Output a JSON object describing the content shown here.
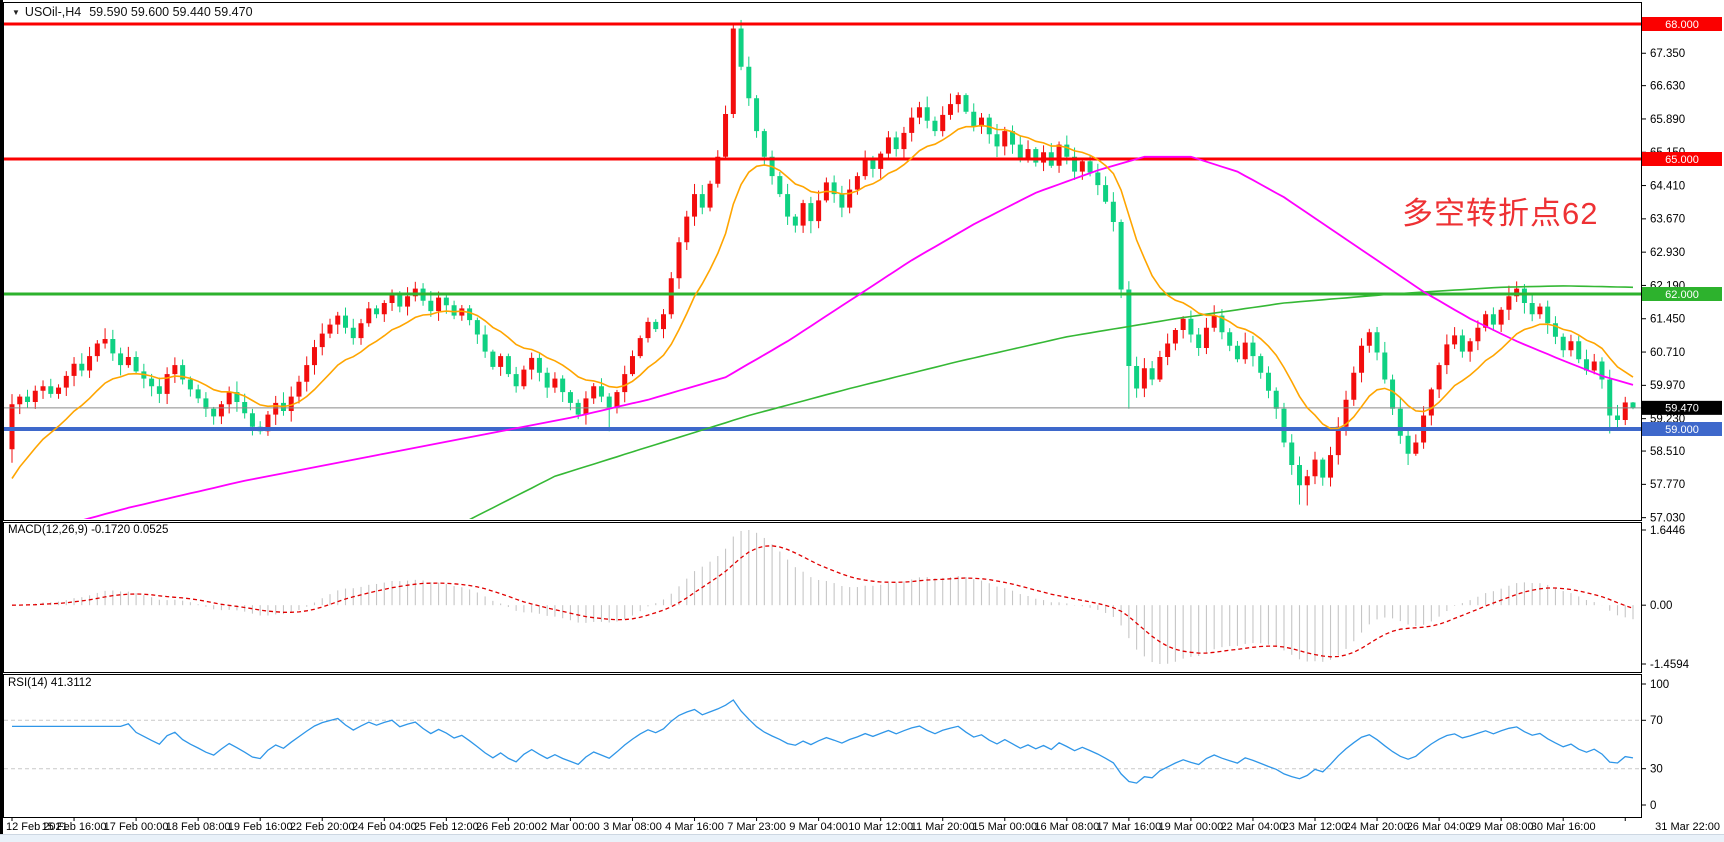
{
  "header": {
    "symbol_period": "USOil-,H4",
    "quote": "59.590 59.600 59.440 59.470",
    "open": "59.590",
    "high": "59.600",
    "low": "59.440",
    "close": "59.470"
  },
  "annotation": {
    "text": "多空转折点62",
    "color": "#ee3134"
  },
  "colors": {
    "candle_up": "#f20d0d",
    "candle_down": "#0fd182",
    "ma_fast_orange": "#ffa500",
    "ma_mid_magenta": "#ff00ff",
    "ma_slow_green": "#35b835",
    "hline_red": "#fb0000",
    "hline_green": "#2db22d",
    "hline_blue": "#3e68cb",
    "current_price_line": "#8a8a8a",
    "current_price_badge_bg": "#000000",
    "macd_histogram": "#c6c6c6",
    "macd_signal": "#e00000",
    "rsi_line": "#2f96e8",
    "level_dash": "#c9c9c9",
    "axis_text": "#000000"
  },
  "main_pane": {
    "y_ticks": [
      "67.350",
      "66.630",
      "65.890",
      "65.150",
      "64.410",
      "63.670",
      "62.930",
      "62.190",
      "61.450",
      "60.710",
      "59.970",
      "59.230",
      "58.510",
      "57.770",
      "57.030"
    ],
    "hlines": [
      {
        "price": 68.0,
        "label": "68.000",
        "color_key": "hline_red",
        "thickness": 3
      },
      {
        "price": 65.0,
        "label": "65.000",
        "color_key": "hline_red",
        "thickness": 3
      },
      {
        "price": 62.0,
        "label": "62.000",
        "color_key": "hline_green",
        "thickness": 3
      },
      {
        "price": 59.0,
        "label": "59.000",
        "color_key": "hline_blue",
        "thickness": 4
      }
    ],
    "current_price": {
      "value": 59.47,
      "label": "59.470"
    }
  },
  "chart_data": {
    "type": "candlestick",
    "title": "USOil-,H4  59.590 59.600 59.440 59.470",
    "symbol": "USOil-",
    "timeframe": "H4",
    "ylim": [
      56.98,
      68.47
    ],
    "bars_per_x_label": 8,
    "x_labels": [
      "12 Feb 2021",
      "15 Feb 16:00",
      "17 Feb 00:00",
      "18 Feb 08:00",
      "19 Feb 16:00",
      "22 Feb 20:00",
      "24 Feb 04:00",
      "25 Feb 12:00",
      "26 Feb 20:00",
      "2 Mar 00:00",
      "3 Mar 08:00",
      "4 Mar 16:00",
      "7 Mar 23:00",
      "9 Mar 04:00",
      "10 Mar 12:00",
      "11 Mar 20:00",
      "15 Mar 00:00",
      "16 Mar 08:00",
      "17 Mar 16:00",
      "19 Mar 00:00",
      "22 Mar 04:00",
      "23 Mar 12:00",
      "24 Mar 20:00",
      "26 Mar 04:00",
      "29 Mar 08:00",
      "30 Mar 16:00",
      "31 Mar 22:00"
    ],
    "first_open": 58.55,
    "closes": [
      59.55,
      59.72,
      59.6,
      59.85,
      59.95,
      59.78,
      59.92,
      60.18,
      60.45,
      60.3,
      60.62,
      60.9,
      61.0,
      60.68,
      60.42,
      60.6,
      60.28,
      60.12,
      59.95,
      59.78,
      60.22,
      60.42,
      60.1,
      59.88,
      59.68,
      59.45,
      59.28,
      59.55,
      59.82,
      59.6,
      59.35,
      59.05,
      58.95,
      59.32,
      59.58,
      59.4,
      59.72,
      60.05,
      60.42,
      60.82,
      61.12,
      61.32,
      61.52,
      61.25,
      61.02,
      61.35,
      61.68,
      61.55,
      61.8,
      62.0,
      61.72,
      61.95,
      62.12,
      61.85,
      61.62,
      61.92,
      61.75,
      61.52,
      61.68,
      61.42,
      61.1,
      60.72,
      60.38,
      60.62,
      60.22,
      59.95,
      60.32,
      60.58,
      60.25,
      59.92,
      60.12,
      59.82,
      59.58,
      59.32,
      59.68,
      59.95,
      59.72,
      59.48,
      59.82,
      60.22,
      60.62,
      61.02,
      61.38,
      61.22,
      61.55,
      62.35,
      63.15,
      63.72,
      64.22,
      63.92,
      64.45,
      65.05,
      66.0,
      67.9,
      67.05,
      66.35,
      65.62,
      65.05,
      64.62,
      64.22,
      63.72,
      63.52,
      64.02,
      63.62,
      64.08,
      64.48,
      64.22,
      63.92,
      64.32,
      64.62,
      65.02,
      64.78,
      65.12,
      65.48,
      65.22,
      65.58,
      65.92,
      66.15,
      65.85,
      65.62,
      65.98,
      66.22,
      66.42,
      66.05,
      65.72,
      65.92,
      65.55,
      65.28,
      65.62,
      65.32,
      64.98,
      65.22,
      64.92,
      65.15,
      64.85,
      65.32,
      65.05,
      64.72,
      64.95,
      64.7,
      64.42,
      64.05,
      63.6,
      62.1,
      60.4,
      59.9,
      60.35,
      60.1,
      60.6,
      60.9,
      61.2,
      61.45,
      61.1,
      60.8,
      61.25,
      61.52,
      61.15,
      60.85,
      60.55,
      60.92,
      60.62,
      60.25,
      59.85,
      59.45,
      58.7,
      58.2,
      57.75,
      57.95,
      58.32,
      57.92,
      58.42,
      59.05,
      59.65,
      60.25,
      60.85,
      61.15,
      60.7,
      60.1,
      59.45,
      58.85,
      58.45,
      58.7,
      59.3,
      59.88,
      60.42,
      60.88,
      61.08,
      60.72,
      60.95,
      61.25,
      61.55,
      61.32,
      61.65,
      61.95,
      62.12,
      61.8,
      61.55,
      61.72,
      61.35,
      61.05,
      60.75,
      60.95,
      60.55,
      60.3,
      60.5,
      60.1,
      59.3,
      59.2,
      59.59,
      59.47
    ],
    "wick_overrides": [
      {
        "i": 0,
        "low": 58.25
      },
      {
        "i": 32,
        "low": 58.88
      },
      {
        "i": 77,
        "low": 58.95
      },
      {
        "i": 93,
        "high": 67.98
      },
      {
        "i": 103,
        "low": 63.35
      },
      {
        "i": 144,
        "low": 59.45
      },
      {
        "i": 166,
        "low": 57.32
      },
      {
        "i": 167,
        "low": 57.3
      },
      {
        "i": 180,
        "low": 58.2
      },
      {
        "i": 194,
        "high": 62.28
      },
      {
        "i": 206,
        "low": 58.9
      },
      {
        "i": 209,
        "high": 59.6,
        "low": 59.44
      }
    ],
    "moving_averages": {
      "orange_fast": {
        "style": "ema",
        "period": 13,
        "seed": 57.9,
        "color_key": "ma_fast_orange"
      },
      "magenta_mid": {
        "style": "waypoints",
        "color_key": "ma_mid_magenta",
        "points": [
          [
            0,
            56.55
          ],
          [
            15,
            57.25
          ],
          [
            30,
            57.85
          ],
          [
            45,
            58.35
          ],
          [
            60,
            58.85
          ],
          [
            72,
            59.25
          ],
          [
            82,
            59.65
          ],
          [
            92,
            60.15
          ],
          [
            100,
            60.95
          ],
          [
            108,
            61.85
          ],
          [
            116,
            62.75
          ],
          [
            124,
            63.55
          ],
          [
            132,
            64.25
          ],
          [
            140,
            64.75
          ],
          [
            146,
            65.05
          ],
          [
            152,
            65.05
          ],
          [
            158,
            64.72
          ],
          [
            164,
            64.15
          ],
          [
            170,
            63.45
          ],
          [
            176,
            62.75
          ],
          [
            182,
            62.05
          ],
          [
            188,
            61.45
          ],
          [
            194,
            60.95
          ],
          [
            200,
            60.52
          ],
          [
            205,
            60.18
          ],
          [
            209,
            59.98
          ]
        ]
      },
      "green_slow": {
        "style": "waypoints",
        "color_key": "ma_slow_green",
        "points": [
          [
            58,
            56.9
          ],
          [
            70,
            57.95
          ],
          [
            82,
            58.6
          ],
          [
            95,
            59.3
          ],
          [
            108,
            59.9
          ],
          [
            122,
            60.5
          ],
          [
            136,
            61.05
          ],
          [
            150,
            61.45
          ],
          [
            164,
            61.8
          ],
          [
            178,
            62.0
          ],
          [
            192,
            62.15
          ],
          [
            200,
            62.18
          ],
          [
            209,
            62.15
          ]
        ]
      }
    },
    "macd": {
      "label": "MACD(12,26,9) -0.1720 0.0525",
      "fast": 12,
      "slow": 26,
      "signal": 9,
      "value_main": -0.172,
      "value_signal": 0.0525,
      "axis_labels": [
        "1.6446",
        "0.00",
        "-1.4594"
      ],
      "axis_range": [
        -1.4594,
        1.6446
      ]
    },
    "rsi": {
      "label": "RSI(14) 41.3112",
      "period": 14,
      "value": 41.3112,
      "levels": [
        70,
        30
      ],
      "axis_labels": [
        "100",
        "70",
        "30",
        "0"
      ],
      "axis_range": [
        0,
        100
      ]
    }
  },
  "time_axis": {
    "labels_key": "chart_data.x_labels"
  }
}
